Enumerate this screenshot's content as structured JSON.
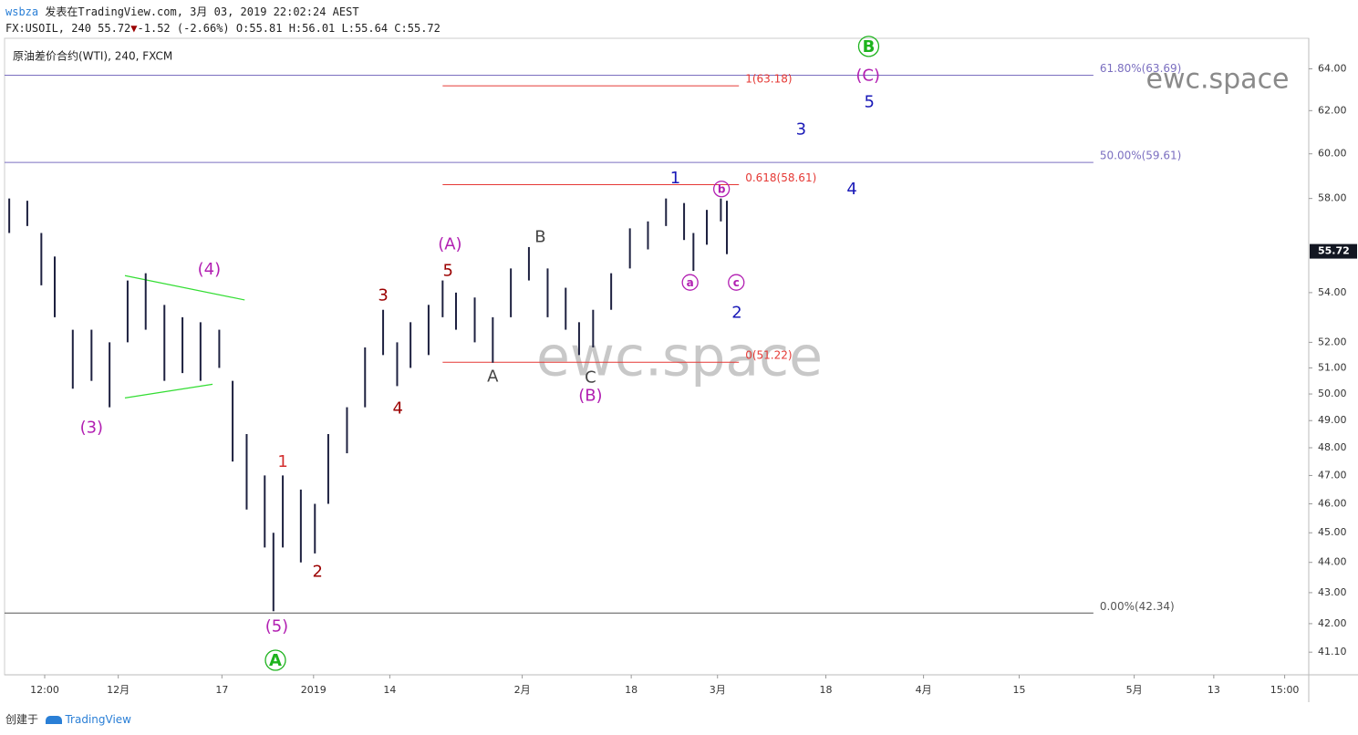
{
  "header": {
    "author": "wsbza",
    "published": "发表在TradingView.com, 3月 03, 2019 22:02:24 AEST",
    "symbol": "FX:USOIL, 240",
    "price": "55.72",
    "arrow": "▼",
    "change": "-1.52 (-2.66%)",
    "ohlc": "O:55.81 H:56.01 L:55.64 C:55.72"
  },
  "footer": {
    "created": "创建于",
    "brand": "TradingView"
  },
  "chart_data": {
    "type": "ohlc",
    "title": "原油差价合约(WTI), 240, FXCM",
    "color": "#1e2140",
    "log_scale": true,
    "x": [
      -16.3,
      -13.6,
      -11.5,
      -9.5,
      -6.8,
      -4.0,
      -1.3,
      1.4,
      4.1,
      6.9,
      9.6,
      12.3,
      15.1,
      17.1,
      19.2,
      21.9,
      23.2,
      24.6,
      27.3,
      29.4,
      31.4,
      34.2,
      36.9,
      39.6,
      41.7,
      43.7,
      46.4,
      48.5,
      50.5,
      53.3,
      56.0,
      58.7,
      61.4,
      64.2,
      66.9,
      68.9,
      71.0,
      73.7,
      76.5,
      79.2,
      81.9,
      84.6,
      86.0,
      88.0,
      90.1,
      91.0
    ],
    "high": [
      58.0,
      57.9,
      56.5,
      55.5,
      52.5,
      52.5,
      52.0,
      54.5,
      54.8,
      53.5,
      53.0,
      52.8,
      52.5,
      50.5,
      48.5,
      47.0,
      45.0,
      47.0,
      46.5,
      46.0,
      48.5,
      49.5,
      51.8,
      53.3,
      52.0,
      52.8,
      53.5,
      54.5,
      54.0,
      53.8,
      53.0,
      55.0,
      55.9,
      55.0,
      54.2,
      52.8,
      53.3,
      54.8,
      56.7,
      57.0,
      58.0,
      57.8,
      56.5,
      57.5,
      58.0,
      57.9
    ],
    "low": [
      56.5,
      56.8,
      54.3,
      53.0,
      50.2,
      50.5,
      49.5,
      52.0,
      52.5,
      50.5,
      50.8,
      50.5,
      51.0,
      47.5,
      45.8,
      44.5,
      42.4,
      44.5,
      44.0,
      44.3,
      46.0,
      47.8,
      49.5,
      51.5,
      50.3,
      51.0,
      51.5,
      53.0,
      52.5,
      52.0,
      51.2,
      53.0,
      54.5,
      53.0,
      52.5,
      51.5,
      51.8,
      53.3,
      55.0,
      55.8,
      56.8,
      56.2,
      54.9,
      56.0,
      57.0,
      55.6
    ],
    "last": 55.72,
    "ylim": [
      40.4,
      65.5
    ],
    "yticks": [
      {
        "value": 64,
        "label": "64.00"
      },
      {
        "value": 62,
        "label": "62.00"
      },
      {
        "value": 60,
        "label": "60.00"
      },
      {
        "value": 58,
        "label": "58.00"
      },
      {
        "value": 54,
        "label": "54.00"
      },
      {
        "value": 52,
        "label": "52.00"
      },
      {
        "value": 51,
        "label": "51.00"
      },
      {
        "value": 50,
        "label": "50.00"
      },
      {
        "value": 49,
        "label": "49.00"
      },
      {
        "value": 48,
        "label": "48.00"
      },
      {
        "value": 47,
        "label": "47.00"
      },
      {
        "value": 46,
        "label": "46.00"
      },
      {
        "value": 45,
        "label": "45.00"
      },
      {
        "value": 44,
        "label": "44.00"
      },
      {
        "value": 43,
        "label": "43.00"
      },
      {
        "value": 42,
        "label": "42.00"
      },
      {
        "value": 41.1,
        "label": "41.10"
      }
    ],
    "xlim": [
      -17,
      178
    ],
    "xticks": [
      {
        "value": -11,
        "label": "12:00"
      },
      {
        "value": 0,
        "label": "12月"
      },
      {
        "value": 15.5,
        "label": "17"
      },
      {
        "value": 29.2,
        "label": "2019"
      },
      {
        "value": 40.6,
        "label": "14"
      },
      {
        "value": 60.4,
        "label": "2月"
      },
      {
        "value": 76.7,
        "label": "18"
      },
      {
        "value": 89.6,
        "label": "3月"
      },
      {
        "value": 105.8,
        "label": "18"
      },
      {
        "value": 120.4,
        "label": "4月"
      },
      {
        "value": 134.7,
        "label": "15"
      },
      {
        "value": 151.9,
        "label": "5月"
      },
      {
        "value": 163.8,
        "label": "13"
      },
      {
        "value": 174.4,
        "label": "15:00"
      }
    ],
    "levels": [
      {
        "label": "61.80%(63.69)",
        "value": 63.69,
        "x": [
          -17,
          145.8
        ],
        "color": "#7b6fc0"
      },
      {
        "label": "50.00%(59.61)",
        "value": 59.61,
        "x": [
          -17,
          145.8
        ],
        "color": "#7b6fc0"
      },
      {
        "label": "0.00%(42.34)",
        "value": 42.34,
        "x": [
          -17,
          145.8
        ],
        "color": "#555555"
      },
      {
        "label": "1(63.18)",
        "value": 63.18,
        "x": [
          48.5,
          92.8
        ],
        "color": "#e53935"
      },
      {
        "label": "0.618(58.61)",
        "value": 58.61,
        "x": [
          48.5,
          92.8
        ],
        "color": "#e53935"
      },
      {
        "label": "0(51.22)",
        "value": 51.22,
        "x": [
          48.5,
          92.8
        ],
        "color": "#e53935"
      }
    ],
    "trendlines": [
      {
        "x": [
          1.0,
          18.9
        ],
        "y": [
          54.7,
          53.7
        ],
        "color": "#33dd33"
      },
      {
        "x": [
          1.0,
          14.1
        ],
        "y": [
          49.85,
          50.37
        ],
        "color": "#33dd33"
      }
    ],
    "annotations": [
      {
        "text": "(4)",
        "x": 13.6,
        "y": 54.97,
        "color": "#b21fb2"
      },
      {
        "text": "(3)",
        "x": -4.0,
        "y": 48.76,
        "color": "#b21fb2"
      },
      {
        "text": "(5)",
        "x": 23.7,
        "y": 41.93,
        "color": "#b21fb2"
      },
      {
        "text": "A",
        "x": 23.5,
        "y": 40.85,
        "color": "#1db31d",
        "circled": true
      },
      {
        "text": "1",
        "x": 24.6,
        "y": 47.5,
        "color": "#d32f2f"
      },
      {
        "text": "2",
        "x": 29.8,
        "y": 43.71,
        "color": "#9b0000"
      },
      {
        "text": "3",
        "x": 39.6,
        "y": 53.9,
        "color": "#9b0000"
      },
      {
        "text": "4",
        "x": 41.8,
        "y": 49.47,
        "color": "#9b0000"
      },
      {
        "text": "5",
        "x": 49.3,
        "y": 54.92,
        "color": "#9b0000"
      },
      {
        "text": "(A)",
        "x": 49.6,
        "y": 56.03,
        "color": "#b21fb2"
      },
      {
        "text": "A",
        "x": 56.0,
        "y": 50.68,
        "color": "#444444"
      },
      {
        "text": "B",
        "x": 63.1,
        "y": 56.35,
        "color": "#444444"
      },
      {
        "text": "C",
        "x": 70.6,
        "y": 50.64,
        "color": "#444444"
      },
      {
        "text": "(B)",
        "x": 70.6,
        "y": 49.95,
        "color": "#b21fb2"
      },
      {
        "text": "1",
        "x": 83.3,
        "y": 58.91,
        "color": "#1a1ab8"
      },
      {
        "text": "2",
        "x": 92.5,
        "y": 53.19,
        "color": "#1a1ab8"
      },
      {
        "text": "3",
        "x": 102.1,
        "y": 61.15,
        "color": "#1a1ab8"
      },
      {
        "text": "4",
        "x": 109.7,
        "y": 58.42,
        "color": "#1a1ab8"
      },
      {
        "text": "5",
        "x": 112.3,
        "y": 62.43,
        "color": "#1a1ab8"
      },
      {
        "text": "(C)",
        "x": 112.1,
        "y": 63.69,
        "color": "#b21fb2"
      },
      {
        "text": "B",
        "x": 112.2,
        "y": 65.1,
        "color": "#1db31d",
        "circled": true
      },
      {
        "text": "b",
        "x": 90.2,
        "y": 58.42,
        "color": "#b21fb2",
        "circled": true
      },
      {
        "text": "a",
        "x": 85.5,
        "y": 54.42,
        "color": "#b21fb2",
        "circled": true
      },
      {
        "text": "c",
        "x": 92.4,
        "y": 54.42,
        "color": "#b21fb2",
        "circled": true
      }
    ],
    "watermarks": [
      "ewc.space",
      "ewc.space"
    ]
  }
}
